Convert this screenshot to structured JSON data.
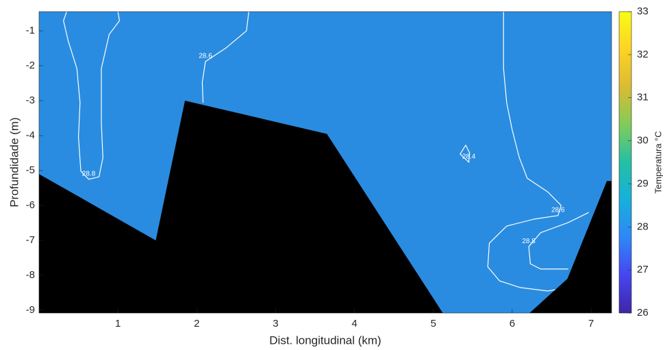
{
  "chart_data": {
    "type": "contour",
    "xlabel": "Dist. longitudinal (km)",
    "ylabel": "Profundidade (m)",
    "xlim": [
      0,
      7.26
    ],
    "ylim": [
      -9.08,
      -0.45
    ],
    "xticks": [
      1,
      2,
      3,
      4,
      5,
      6,
      7
    ],
    "yticks": [
      -9,
      -8,
      -7,
      -6,
      -5,
      -4,
      -3,
      -2,
      -1
    ],
    "field_color": "#2a8ce0",
    "contours": [
      {
        "level": 28.8,
        "x": [
          0.35,
          0.31,
          0.37,
          0.48,
          0.52,
          0.5,
          0.53,
          0.63,
          0.76,
          0.81,
          0.79,
          0.79,
          0.89,
          1.02,
          1.0
        ],
        "y": [
          -0.45,
          -0.71,
          -1.29,
          -2.08,
          -3.06,
          -4.04,
          -5.02,
          -5.25,
          -5.18,
          -4.63,
          -3.65,
          -2.08,
          -1.1,
          -0.71,
          -0.45
        ]
      },
      {
        "level": 28.6,
        "x": [
          2.66,
          2.63,
          2.37,
          2.11,
          2.07,
          2.08
        ],
        "y": [
          -0.45,
          -1.0,
          -1.49,
          -1.88,
          -2.47,
          -3.06
        ]
      },
      {
        "level": 28.6,
        "x": [
          5.89,
          5.89,
          5.89,
          5.93,
          6.0,
          6.09,
          6.19,
          6.45,
          6.62,
          6.58,
          6.28,
          5.93,
          5.71,
          5.69,
          5.84,
          6.1,
          6.45,
          6.71
        ],
        "y": [
          -0.45,
          -1.1,
          -2.08,
          -3.06,
          -3.84,
          -4.63,
          -5.22,
          -5.61,
          -6.0,
          -6.29,
          -6.39,
          -6.59,
          -7.08,
          -7.76,
          -8.16,
          -8.35,
          -8.45,
          -8.35
        ]
      },
      {
        "level": 28.8,
        "x": [
          6.97,
          6.71,
          6.36,
          6.21,
          6.23,
          6.36,
          6.71
        ],
        "y": [
          -6.2,
          -6.49,
          -6.78,
          -7.18,
          -7.67,
          -7.82,
          -7.82
        ]
      },
      {
        "level": 28.4,
        "x": [
          5.41,
          5.34,
          5.45,
          5.46,
          5.41
        ],
        "y": [
          -4.27,
          -4.53,
          -4.76,
          -4.5,
          -4.27
        ]
      }
    ],
    "bottom": {
      "x": [
        0,
        1.48,
        1.85,
        3.65,
        5.12,
        6.22,
        6.7,
        7.2,
        7.26
      ],
      "y": [
        -5.1,
        -7.0,
        -3.0,
        -3.95,
        -9.08,
        -9.08,
        -8.1,
        -5.3,
        -5.3
      ]
    },
    "colorbar": {
      "label": "Temperatura °C",
      "lim": [
        26,
        33
      ],
      "ticks": [
        26,
        27,
        28,
        29,
        30,
        31,
        32,
        33
      ],
      "colormap": [
        "#3e26a8",
        "#4745f1",
        "#2e87f7",
        "#17b0db",
        "#24bfa5",
        "#81cc59",
        "#dbbb32",
        "#fdd324",
        "#f9fb15"
      ]
    }
  }
}
